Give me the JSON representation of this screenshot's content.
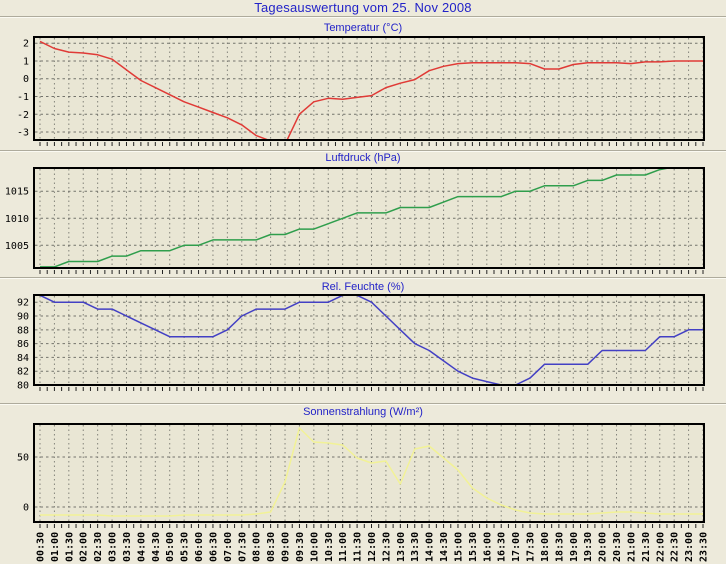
{
  "page": {
    "title": "Tagesauswertung vom 25. Nov 2008"
  },
  "x_axis": {
    "labels": [
      "00:30",
      "01:00",
      "01:30",
      "02:00",
      "02:30",
      "03:00",
      "03:30",
      "04:00",
      "04:30",
      "05:00",
      "05:30",
      "06:00",
      "06:30",
      "07:00",
      "07:30",
      "08:00",
      "08:30",
      "09:00",
      "09:30",
      "10:00",
      "10:30",
      "11:00",
      "11:30",
      "12:00",
      "12:30",
      "13:00",
      "13:30",
      "14:00",
      "14:30",
      "15:00",
      "15:30",
      "16:00",
      "16:30",
      "17:00",
      "17:30",
      "18:00",
      "18:30",
      "19:00",
      "19:30",
      "20:00",
      "20:30",
      "21:00",
      "21:30",
      "22:00",
      "22:30",
      "23:00",
      "23:30"
    ]
  },
  "chart_data": [
    {
      "type": "line",
      "title": "Temperatur (°C)",
      "color": "#e03a36",
      "ymin": -3.45,
      "ymax": 2.35,
      "yticks": [
        2,
        1,
        0,
        -1,
        -2,
        -3
      ],
      "values": [
        2.1,
        1.7,
        1.5,
        1.45,
        1.35,
        1.1,
        0.5,
        -0.1,
        -0.5,
        -0.9,
        -1.3,
        -1.6,
        -1.9,
        -2.2,
        -2.6,
        -3.2,
        -3.5,
        -3.7,
        -2.0,
        -1.3,
        -1.1,
        -1.15,
        -1.05,
        -0.95,
        -0.5,
        -0.25,
        -0.05,
        0.45,
        0.7,
        0.85,
        0.9,
        0.9,
        0.9,
        0.9,
        0.85,
        0.55,
        0.55,
        0.8,
        0.9,
        0.9,
        0.9,
        0.85,
        0.95,
        0.95,
        1.0,
        1.0,
        1.0
      ]
    },
    {
      "type": "line",
      "title": "Luftdruck (hPa)",
      "color": "#2f9e4c",
      "ymin": 1000.8,
      "ymax": 1019.3,
      "yticks": [
        1015,
        1010,
        1005
      ],
      "values": [
        1001,
        1001,
        1002,
        1002,
        1002,
        1003,
        1003,
        1004,
        1004,
        1004,
        1005,
        1005,
        1006,
        1006,
        1006,
        1006,
        1007,
        1007,
        1008,
        1008,
        1009,
        1010,
        1011,
        1011,
        1011,
        1012,
        1012,
        1012,
        1013,
        1014,
        1014,
        1014,
        1014,
        1015,
        1015,
        1016,
        1016,
        1016,
        1017,
        1017,
        1018,
        1018,
        1018,
        1019,
        1019.5,
        1020,
        1020
      ]
    },
    {
      "type": "line",
      "title": "Rel. Feuchte (%)",
      "color": "#4340c4",
      "ymin": 80,
      "ymax": 93.05,
      "yticks": [
        92,
        90,
        88,
        86,
        84,
        82,
        80
      ],
      "values": [
        93,
        92,
        92,
        92,
        91,
        91,
        90,
        89,
        88,
        87,
        87,
        87,
        87,
        88,
        90,
        91,
        91,
        91,
        92,
        92,
        92,
        93,
        93,
        92,
        90,
        88,
        86,
        85,
        83.5,
        82,
        81,
        80.5,
        80,
        80,
        81,
        83,
        83,
        83,
        83,
        85,
        85,
        85,
        85,
        87,
        87,
        88,
        88
      ]
    },
    {
      "type": "line",
      "title": "Sonnenstrahlung (W/m²)",
      "color": "#f2f296",
      "ymin": -15,
      "ymax": 83,
      "yticks": [
        50,
        0
      ],
      "values": [
        -8,
        -8,
        -8,
        -8,
        -8,
        -9,
        -9,
        -9,
        -9,
        -9,
        -8,
        -8,
        -8,
        -8,
        -8,
        -7,
        -5,
        25,
        79,
        65,
        64,
        62,
        49,
        44,
        46,
        23,
        58,
        61,
        49,
        37,
        19,
        9,
        2,
        -3,
        -6,
        -7,
        -7,
        -7,
        -7,
        -6,
        -5,
        -5,
        -6,
        -7,
        -7,
        -7,
        -7
      ]
    }
  ]
}
